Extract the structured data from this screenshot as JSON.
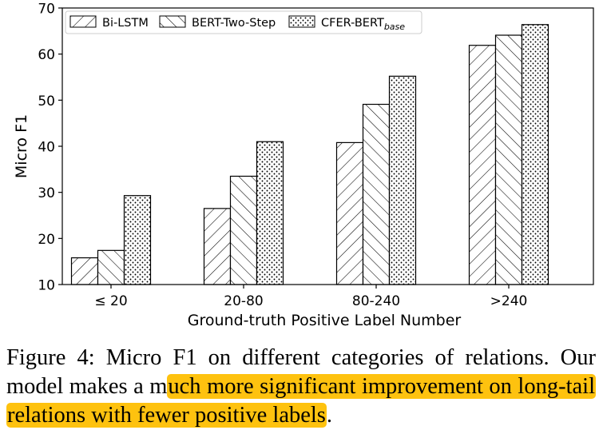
{
  "chart_data": {
    "type": "bar",
    "categories": [
      "≤ 20",
      "20-80",
      "80-240",
      ">240"
    ],
    "series": [
      {
        "name": "Bi-LSTM",
        "values": [
          15.8,
          26.5,
          40.8,
          61.9
        ],
        "pattern": "hatch-forward"
      },
      {
        "name": "BERT-Two-Step",
        "values": [
          17.4,
          33.5,
          49.1,
          64.1
        ],
        "pattern": "hatch-back"
      },
      {
        "name": "CFER-BERT",
        "name_subscript": "base",
        "values": [
          29.3,
          41.0,
          55.2,
          66.4
        ],
        "pattern": "dots"
      }
    ],
    "xlabel": "Ground-truth Positive Label Number",
    "ylabel": "Micro F1",
    "ylim": [
      10,
      70
    ],
    "yticks": [
      "10",
      "20",
      "30",
      "40",
      "50",
      "60",
      "70"
    ],
    "grid": false,
    "legend_position": "top-left",
    "colors": {
      "bar_fill": "#ffffff",
      "bar_stroke": "#000000"
    }
  },
  "caption": {
    "label": "Figure 4:",
    "plain": " Micro F1 on different categories of relations. Our model makes a m",
    "highlighted": "uch more significant improvement on long-tail relations with fewer positive labels",
    "end": "."
  },
  "colors": {
    "highlight": "#fec20f"
  }
}
